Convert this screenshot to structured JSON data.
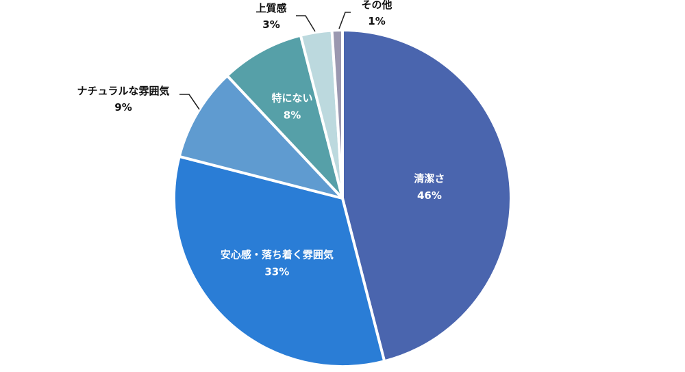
{
  "chart_data": {
    "type": "pie",
    "title": "",
    "start_angle_deg": 0,
    "direction": "clockwise",
    "slice_separator_color": "#ffffff",
    "slices": [
      {
        "label": "清潔さ",
        "value": 46,
        "value_label": "46%",
        "color": "#4a65ae",
        "label_placement": "inside",
        "label_color": "#ffffff"
      },
      {
        "label": "安心感・落ち着く雰囲気",
        "value": 33,
        "value_label": "33%",
        "color": "#2a7dd6",
        "label_placement": "inside",
        "label_color": "#ffffff"
      },
      {
        "label": "ナチュラルな雰囲気",
        "value": 9,
        "value_label": "9%",
        "color": "#5f9bd0",
        "label_placement": "outside",
        "label_color": "#111111"
      },
      {
        "label": "特にない",
        "value": 8,
        "value_label": "8%",
        "color": "#56a0a8",
        "label_placement": "inside",
        "label_color": "#ffffff"
      },
      {
        "label": "上質感",
        "value": 3,
        "value_label": "3%",
        "color": "#bcd9de",
        "label_placement": "outside",
        "label_color": "#111111"
      },
      {
        "label": "その他",
        "value": 1,
        "value_label": "1%",
        "color": "#9a98b0",
        "label_placement": "outside",
        "label_color": "#111111"
      }
    ]
  }
}
